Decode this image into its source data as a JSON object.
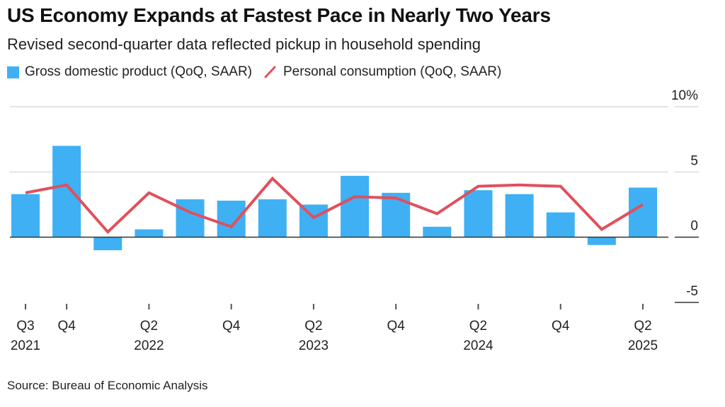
{
  "header": {
    "title": "US Economy Expands at Fastest Pace in Nearly Two Years",
    "subtitle": "Revised second-quarter data reflected pickup in household spending"
  },
  "legend": {
    "items": [
      {
        "label": "Gross domestic product (QoQ, SAAR)",
        "type": "bar",
        "color": "#3fb0f4"
      },
      {
        "label": "Personal consumption (QoQ, SAAR)",
        "type": "line",
        "color": "#e0505c"
      }
    ]
  },
  "footer": {
    "source": "Source: Bureau of Economic Analysis"
  },
  "chart_data": {
    "type": "bar",
    "title": "US Economy Expands at Fastest Pace in Nearly Two Years",
    "subtitle": "Revised second-quarter data reflected pickup in household spending",
    "xlabel": "",
    "ylabel": "",
    "categories": [
      "Q3 2021",
      "Q4 2021",
      "Q1 2022",
      "Q2 2022",
      "Q3 2022",
      "Q4 2022",
      "Q1 2023",
      "Q2 2023",
      "Q3 2023",
      "Q4 2023",
      "Q1 2024",
      "Q2 2024",
      "Q3 2024",
      "Q4 2024",
      "Q1 2025",
      "Q2 2025"
    ],
    "series": [
      {
        "name": "Gross domestic product (QoQ, SAAR)",
        "type": "bar",
        "color": "#3fb0f4",
        "values": [
          3.3,
          7.0,
          -1.0,
          0.6,
          2.9,
          2.8,
          2.9,
          2.5,
          4.7,
          3.4,
          0.8,
          3.6,
          3.3,
          1.9,
          -0.6,
          3.8
        ]
      },
      {
        "name": "Personal consumption (QoQ, SAAR)",
        "type": "line",
        "color": "#e0505c",
        "values": [
          3.4,
          4.0,
          0.4,
          3.4,
          1.9,
          0.8,
          4.5,
          1.5,
          3.1,
          3.0,
          1.8,
          3.9,
          4.0,
          3.9,
          0.6,
          2.5
        ]
      }
    ],
    "x_tick_labels": [
      {
        "index": 0,
        "line1": "Q3",
        "line2": "2021"
      },
      {
        "index": 1,
        "line1": "Q4",
        "line2": ""
      },
      {
        "index": 3,
        "line1": "Q2",
        "line2": "2022"
      },
      {
        "index": 5,
        "line1": "Q4",
        "line2": ""
      },
      {
        "index": 7,
        "line1": "Q2",
        "line2": "2023"
      },
      {
        "index": 9,
        "line1": "Q4",
        "line2": ""
      },
      {
        "index": 11,
        "line1": "Q2",
        "line2": "2024"
      },
      {
        "index": 13,
        "line1": "Q4",
        "line2": ""
      },
      {
        "index": 15,
        "line1": "Q2",
        "line2": "2025"
      }
    ],
    "y_ticks": [
      {
        "value": 10,
        "label": "10%"
      },
      {
        "value": 5,
        "label": "5"
      },
      {
        "value": 0,
        "label": "0"
      },
      {
        "value": -5,
        "label": "-5"
      }
    ],
    "ylim": [
      -5,
      10
    ],
    "grid": true,
    "y_axis_side": "right",
    "legend_position": "top-left"
  }
}
